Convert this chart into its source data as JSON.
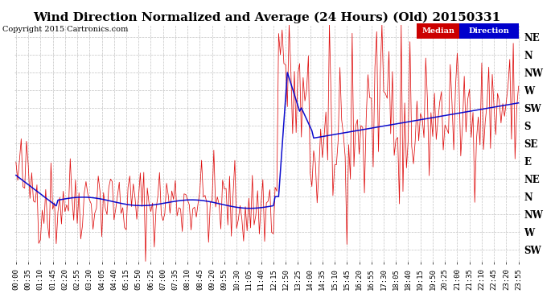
{
  "title": "Wind Direction Normalized and Average (24 Hours) (Old) 20150331",
  "copyright": "Copyright 2015 Cartronics.com",
  "legend_median": "Median",
  "legend_direction": "Direction",
  "legend_median_bg": "#cc0000",
  "legend_direction_bg": "#0000cc",
  "ytick_labels": [
    "NE",
    "N",
    "NW",
    "W",
    "SW",
    "S",
    "SE",
    "E",
    "NE",
    "N",
    "NW",
    "W",
    "SW"
  ],
  "ytick_values": [
    13,
    12,
    11,
    10,
    9,
    8,
    7,
    6,
    5,
    4,
    3,
    2,
    1
  ],
  "ylim": [
    0.3,
    13.7
  ],
  "background_color": "#ffffff",
  "grid_color": "#bbbbbb",
  "red_color": "#dd0000",
  "blue_color": "#0000cc",
  "title_fontsize": 11,
  "copyright_fontsize": 7,
  "tick_fontsize": 6.5,
  "ylabel_fontsize": 8.5,
  "n_points": 288,
  "tick_interval_min": 35
}
